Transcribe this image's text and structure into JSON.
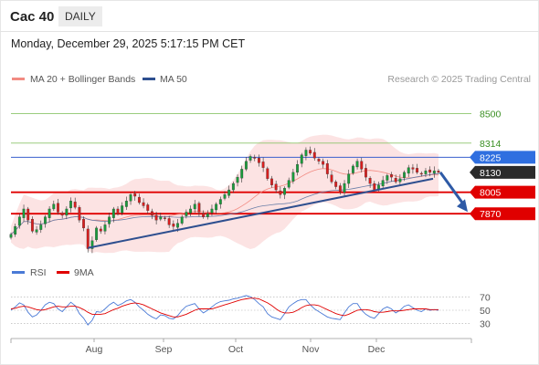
{
  "header": {
    "symbol": "Cac 40",
    "period": "DAILY",
    "datetime": "Monday, December 29, 2025 5:17:15 PM CET"
  },
  "legend": {
    "bollinger": {
      "label": "MA 20 + Bollinger Bands",
      "color": "#f28b82"
    },
    "ma50": {
      "label": "MA 50",
      "color": "#2e4f8f"
    },
    "credit": "Research © 2025 Trading Central"
  },
  "colors": {
    "up": "#1a9c3c",
    "down": "#d91e1e",
    "support_line": "#e00000",
    "pivot_line": "#3a5fcd",
    "target_line": "#8cc56b",
    "price_tag": "#2b2b2b",
    "pivot_tag": "#2f6fe0",
    "rsi": "#4a7ad6",
    "rsi_ma": "#e00000"
  },
  "chart_data": [
    {
      "type": "candlestick",
      "ylim": [
        7590,
        8640
      ],
      "x_months": [
        "Aug",
        "Sep",
        "Oct",
        "Nov",
        "Dec"
      ],
      "levels": [
        {
          "value": 8500,
          "label": "8500",
          "kind": "target"
        },
        {
          "value": 8314,
          "label": "8314",
          "kind": "target"
        },
        {
          "value": 8225,
          "label": "8225",
          "kind": "pivot"
        },
        {
          "value": 8130,
          "label": "8130",
          "kind": "price"
        },
        {
          "value": 8005,
          "label": "8005",
          "kind": "support"
        },
        {
          "value": 7870,
          "label": "7870",
          "kind": "support"
        }
      ],
      "trendline": {
        "from": [
          "2025-08-01",
          7680
        ],
        "to": [
          "2025-12-29",
          8090
        ]
      },
      "forecast_arrow": {
        "from": 8130,
        "to": 7870
      },
      "ohlc_close": [
        7740,
        7790,
        7850,
        7900,
        7830,
        7760,
        7770,
        7800,
        7850,
        7900,
        7930,
        7880,
        7860,
        7900,
        7950,
        7910,
        7830,
        7780,
        7650,
        7700,
        7780,
        7760,
        7800,
        7850,
        7900,
        7870,
        7920,
        7950,
        7990,
        7980,
        7940,
        7920,
        7890,
        7860,
        7830,
        7850,
        7840,
        7800,
        7790,
        7810,
        7850,
        7880,
        7900,
        7930,
        7880,
        7850,
        7870,
        7900,
        7930,
        7960,
        7990,
        8020,
        8060,
        8100,
        8150,
        8200,
        8230,
        8220,
        8190,
        8160,
        8090,
        8050,
        8020,
        7990,
        8030,
        8080,
        8130,
        8180,
        8240,
        8270,
        8250,
        8220,
        8200,
        8180,
        8120,
        8070,
        8040,
        8010,
        8060,
        8120,
        8170,
        8200,
        8150,
        8100,
        8060,
        8020,
        8050,
        8080,
        8110,
        8100,
        8070,
        8090,
        8130,
        8160,
        8150,
        8130,
        8120,
        8140,
        8130,
        8140,
        8130
      ]
    },
    {
      "type": "line",
      "title": "RSI",
      "series": [
        {
          "name": "RSI"
        },
        {
          "name": "9MA"
        }
      ],
      "ylim": [
        20,
        80
      ],
      "yticks": [
        70,
        50,
        30
      ],
      "rsi": [
        50,
        55,
        61,
        58,
        47,
        40,
        43,
        50,
        58,
        62,
        60,
        52,
        48,
        55,
        62,
        57,
        45,
        38,
        28,
        35,
        48,
        47,
        52,
        58,
        62,
        57,
        60,
        64,
        66,
        62,
        55,
        50,
        44,
        40,
        37,
        43,
        42,
        38,
        37,
        42,
        50,
        56,
        58,
        60,
        52,
        46,
        50,
        55,
        60,
        63,
        64,
        65,
        67,
        68,
        70,
        72,
        70,
        66,
        60,
        55,
        45,
        40,
        38,
        36,
        45,
        55,
        60,
        64,
        66,
        66,
        58,
        52,
        48,
        44,
        40,
        38,
        37,
        36,
        46,
        55,
        60,
        60,
        50,
        44,
        40,
        38,
        45,
        52,
        55,
        52,
        46,
        50,
        56,
        58,
        54,
        50,
        48,
        52,
        50,
        51,
        50
      ],
      "rsi_ma": [
        52,
        53,
        55,
        56,
        55,
        53,
        51,
        50,
        51,
        53,
        55,
        56,
        55,
        55,
        56,
        56,
        54,
        51,
        47,
        44,
        44,
        44,
        45,
        48,
        51,
        53,
        56,
        58,
        60,
        61,
        60,
        58,
        55,
        52,
        49,
        46,
        44,
        42,
        40,
        40,
        42,
        44,
        47,
        50,
        52,
        52,
        52,
        52,
        54,
        56,
        58,
        60,
        62,
        64,
        66,
        67,
        68,
        68,
        67,
        64,
        61,
        57,
        52,
        48,
        46,
        46,
        47,
        50,
        54,
        57,
        58,
        58,
        57,
        54,
        51,
        48,
        45,
        43,
        42,
        44,
        47,
        50,
        51,
        51,
        50,
        48,
        47,
        47,
        48,
        49,
        49,
        49,
        50,
        51,
        52,
        52,
        52,
        52,
        51,
        51,
        51
      ]
    }
  ]
}
